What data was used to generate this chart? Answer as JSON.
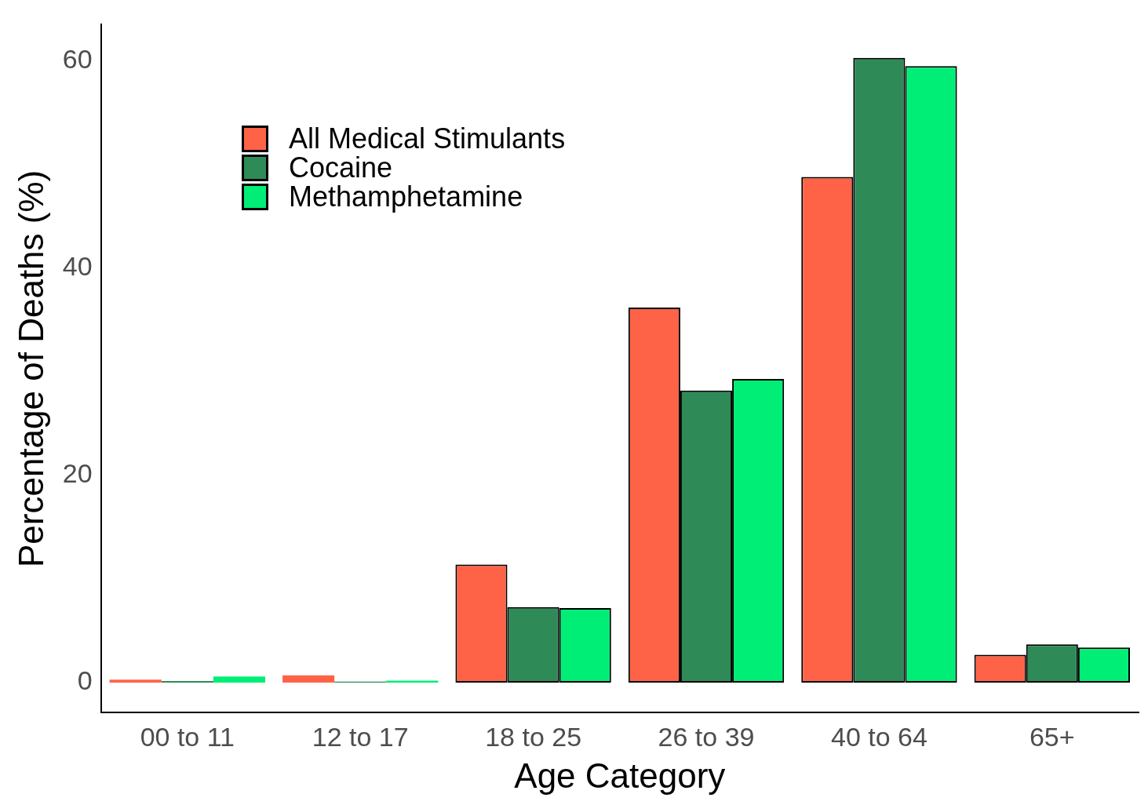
{
  "chart_data": {
    "type": "bar",
    "xlabel": "Age Category",
    "ylabel": "Percentage of Deaths (%)",
    "categories": [
      "00 to 11",
      "12 to 17",
      "18 to 25",
      "26 to 39",
      "40 to 64",
      "65+"
    ],
    "series": [
      {
        "name": "All Medical Stimulants",
        "color": "#ff6347",
        "values": [
          0.3,
          0.7,
          11.4,
          36.2,
          48.8,
          2.7
        ]
      },
      {
        "name": "Cocaine",
        "color": "#2e8b57",
        "values": [
          0.15,
          0.1,
          7.3,
          28.2,
          60.3,
          3.7
        ]
      },
      {
        "name": "Methamphetamine",
        "color": "#00ee76",
        "values": [
          0.6,
          0.2,
          7.2,
          29.3,
          59.5,
          3.4
        ]
      }
    ],
    "ylim": [
      -2.9,
      63.5
    ],
    "yticks": [
      0,
      20,
      40,
      60
    ],
    "grid": false,
    "legend": "top left"
  }
}
